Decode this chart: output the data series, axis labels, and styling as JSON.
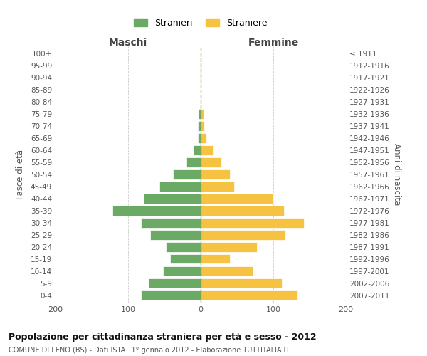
{
  "age_groups_bottom_to_top": [
    "0-4",
    "5-9",
    "10-14",
    "15-19",
    "20-24",
    "25-29",
    "30-34",
    "35-39",
    "40-44",
    "45-49",
    "50-54",
    "55-59",
    "60-64",
    "65-69",
    "70-74",
    "75-79",
    "80-84",
    "85-89",
    "90-94",
    "95-99",
    "100+"
  ],
  "birth_years_bottom_to_top": [
    "2007-2011",
    "2002-2006",
    "1997-2001",
    "1992-1996",
    "1987-1991",
    "1982-1986",
    "1977-1981",
    "1972-1976",
    "1967-1971",
    "1962-1966",
    "1957-1961",
    "1952-1956",
    "1947-1951",
    "1942-1946",
    "1937-1941",
    "1932-1936",
    "1927-1931",
    "1922-1926",
    "1917-1921",
    "1912-1916",
    "≤ 1911"
  ],
  "maschi_bottom_to_top": [
    82,
    72,
    52,
    42,
    48,
    70,
    82,
    122,
    78,
    57,
    38,
    20,
    10,
    4,
    4,
    3,
    0,
    0,
    0,
    0,
    0
  ],
  "femmine_bottom_to_top": [
    133,
    112,
    72,
    40,
    77,
    117,
    142,
    115,
    100,
    46,
    40,
    28,
    18,
    8,
    5,
    4,
    0,
    0,
    0,
    0,
    0
  ],
  "maschi_color": "#6aaa64",
  "femmine_color": "#f5c242",
  "title": "Popolazione per cittadinanza straniera per età e sesso - 2012",
  "subtitle": "COMUNE DI LENO (BS) - Dati ISTAT 1° gennaio 2012 - Elaborazione TUTTITALIA.IT",
  "xlabel_left": "Maschi",
  "xlabel_right": "Femmine",
  "ylabel_left": "Fasce di età",
  "ylabel_right": "Anni di nascita",
  "legend_stranieri": "Stranieri",
  "legend_straniere": "Straniere",
  "xlim": 200,
  "background_color": "#ffffff",
  "grid_color": "#cccccc"
}
